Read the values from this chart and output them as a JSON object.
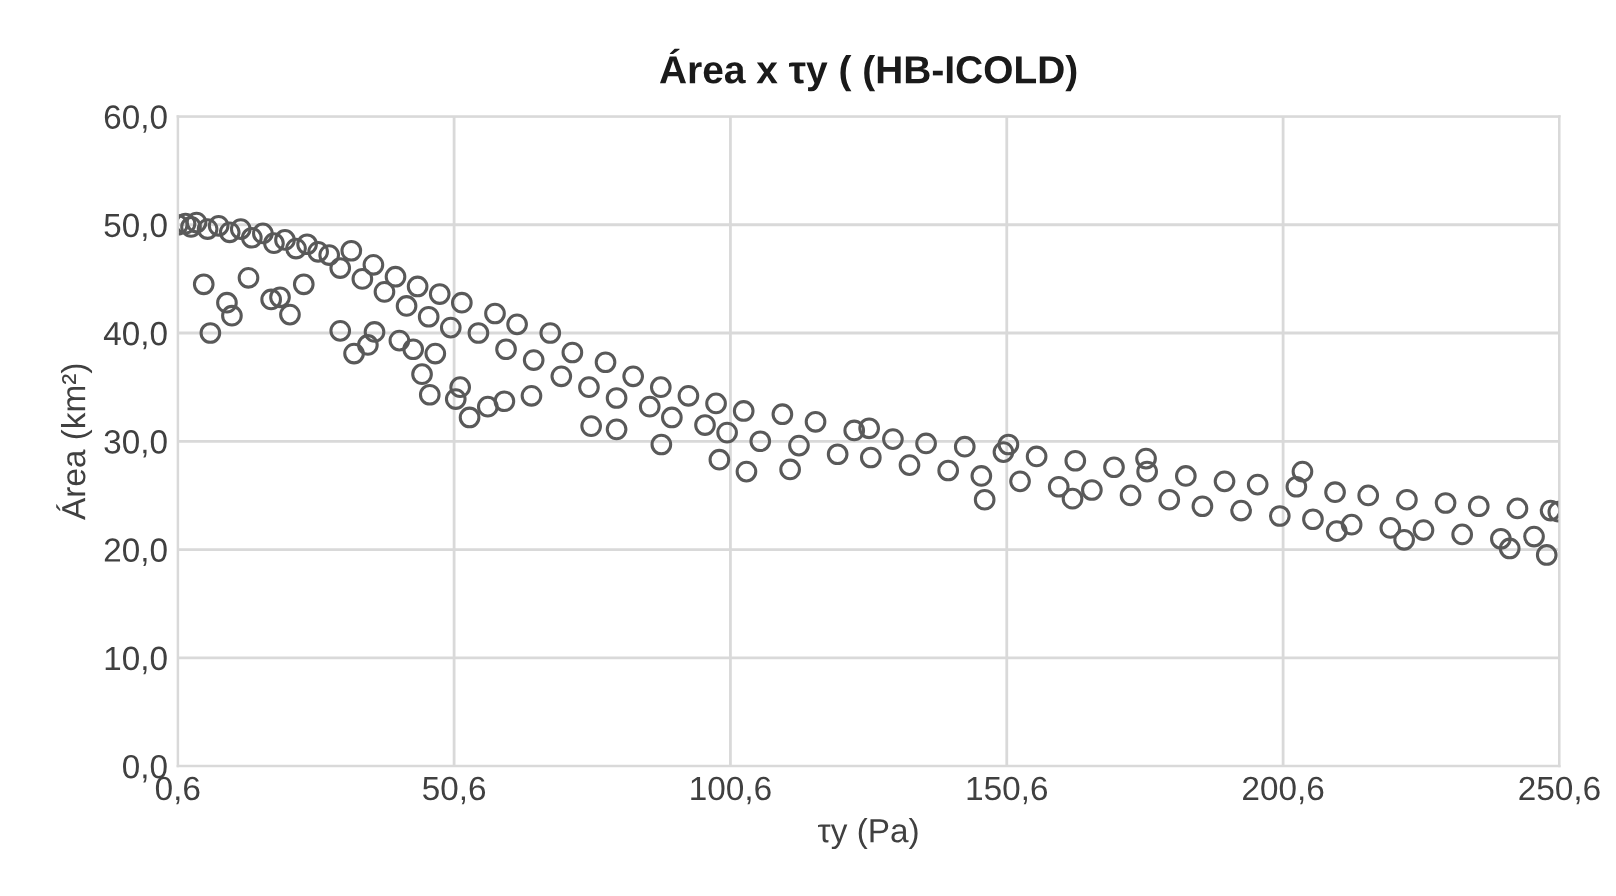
{
  "chart_data": {
    "type": "scatter",
    "title": "Área x τy ( (HB-ICOLD)",
    "xlabel": "τy (Pa)",
    "ylabel": "Área (km²)",
    "x": [
      0.6,
      2,
      3,
      4,
      6,
      8,
      10,
      12,
      14,
      16,
      18,
      20,
      22,
      24,
      26,
      28,
      30,
      32,
      34,
      36,
      38,
      40,
      42,
      44,
      46,
      48,
      50,
      52,
      55,
      58,
      60,
      62,
      65,
      68,
      70,
      72,
      75,
      78,
      80,
      83,
      86,
      88,
      90,
      93,
      96,
      98,
      100,
      103,
      106,
      110,
      113,
      116,
      120,
      123,
      126,
      130,
      133,
      136,
      140,
      143,
      146,
      150,
      153,
      156,
      160,
      163,
      166,
      170,
      173,
      176,
      180,
      183,
      186,
      190,
      193,
      196,
      200,
      203,
      206,
      210,
      213,
      216,
      220,
      223,
      226,
      230,
      233,
      236,
      240,
      243,
      246,
      249,
      5.3,
      6.5,
      9.5,
      10.4,
      13.4,
      17.5,
      19.1,
      20.9,
      23.4,
      30,
      32.5,
      35,
      36.2,
      40.7,
      43.2,
      44.8,
      46.2,
      47.2,
      50.9,
      51.7,
      53.4,
      56.7,
      59.7,
      64.6,
      75.4,
      80,
      88.1,
      98.6,
      103.5,
      111.4,
      146.6,
      162.5,
      210.3,
      222.5,
      241.6,
      248.3,
      250.4,
      150.9,
      125.7,
      204.1,
      175.8
    ],
    "series": [
      {
        "color": "#595959",
        "values": [
          50.0,
          50.1,
          49.8,
          50.2,
          49.6,
          49.9,
          49.3,
          49.6,
          48.8,
          49.2,
          48.3,
          48.6,
          47.8,
          48.2,
          47.5,
          47.2,
          46.0,
          47.6,
          45.0,
          46.3,
          43.8,
          45.2,
          42.5,
          44.3,
          41.5,
          43.6,
          40.5,
          42.8,
          40.0,
          41.8,
          38.5,
          40.8,
          37.5,
          40.0,
          36.0,
          38.2,
          35.0,
          37.3,
          34.0,
          36.0,
          33.2,
          35.0,
          32.2,
          34.2,
          31.5,
          33.5,
          30.8,
          32.8,
          30.0,
          32.5,
          29.6,
          31.8,
          28.8,
          31.0,
          28.5,
          30.2,
          27.8,
          29.8,
          27.3,
          29.5,
          26.8,
          29.0,
          26.3,
          28.6,
          25.8,
          28.2,
          25.5,
          27.6,
          25.0,
          27.2,
          24.6,
          26.8,
          24.0,
          26.3,
          23.6,
          26.0,
          23.1,
          25.8,
          22.8,
          25.3,
          22.3,
          25.0,
          22.0,
          24.6,
          21.8,
          24.3,
          21.4,
          24.0,
          21.0,
          23.8,
          21.2,
          23.6,
          44.5,
          40.0,
          42.8,
          41.6,
          45.1,
          43.1,
          43.3,
          41.7,
          44.5,
          40.2,
          38.1,
          38.9,
          40.1,
          39.3,
          38.5,
          36.2,
          34.3,
          38.1,
          33.9,
          35.0,
          32.2,
          33.2,
          33.7,
          34.2,
          31.4,
          31.1,
          29.7,
          28.3,
          27.2,
          27.4,
          24.6,
          24.7,
          21.7,
          20.9,
          20.1,
          19.5,
          23.5,
          29.7,
          31.2,
          27.2,
          28.4
        ]
      }
    ],
    "marker": "circle",
    "grid": true,
    "xlim": [
      0.6,
      250.6
    ],
    "ylim": [
      0,
      60
    ],
    "xticks": [
      {
        "value": 0.6,
        "label": "0,6"
      },
      {
        "value": 50.6,
        "label": "50,6"
      },
      {
        "value": 100.6,
        "label": "100,6"
      },
      {
        "value": 150.6,
        "label": "150,6"
      },
      {
        "value": 200.6,
        "label": "200,6"
      },
      {
        "value": 250.6,
        "label": "250,6"
      }
    ],
    "yticks": [
      {
        "value": 0,
        "label": "0,0"
      },
      {
        "value": 10,
        "label": "10,0"
      },
      {
        "value": 20,
        "label": "20,0"
      },
      {
        "value": 30,
        "label": "30,0"
      },
      {
        "value": 40,
        "label": "40,0"
      },
      {
        "value": 50,
        "label": "50,0"
      },
      {
        "value": 60,
        "label": "60,0"
      }
    ]
  }
}
